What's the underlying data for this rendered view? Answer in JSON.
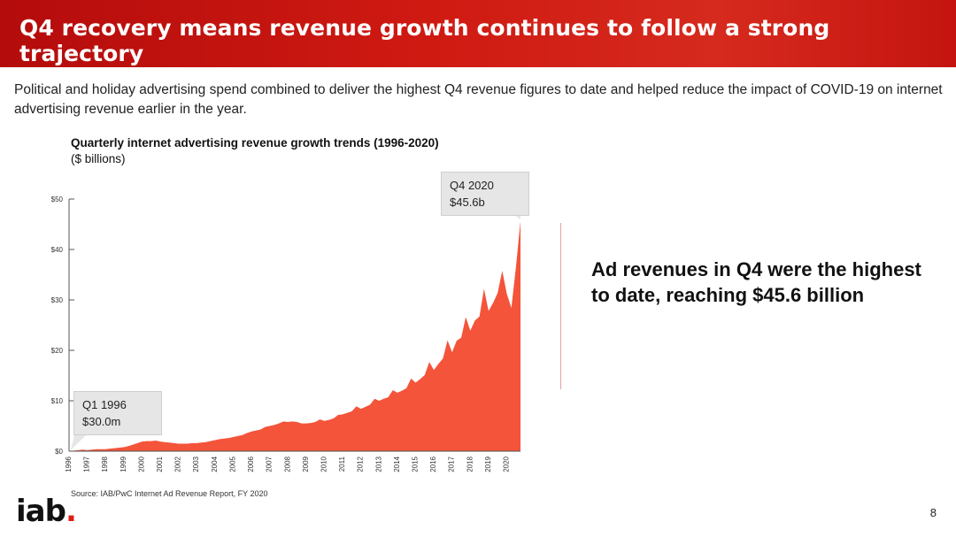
{
  "header": {
    "title": "Q4 recovery means revenue growth continues to follow a strong trajectory"
  },
  "subtitle": "Political and holiday advertising spend combined to deliver the highest Q4 revenue figures to date and helped reduce the impact of COVID-19 on internet advertising revenue earlier in the year.",
  "callouts": {
    "q4": {
      "line1": "Q4 2020",
      "line2": "$45.6b"
    },
    "q1": {
      "line1": "Q1 1996",
      "line2": "$30.0m"
    }
  },
  "takeaway": "Ad revenues in Q4 were the highest to date, reaching $45.6 billion",
  "source": "Source: IAB/PwC Internet Ad Revenue Report, FY 2020",
  "logo": {
    "text": "iab",
    "dot": "."
  },
  "page_number": "8",
  "colors": {
    "area": "#f4543a",
    "header": "#c8150f",
    "axis": "#555555"
  },
  "chart_data": {
    "type": "area",
    "title": "Quarterly internet advertising revenue growth trends (1996-2020)",
    "subtitle": "($ billions)",
    "ylim": [
      0,
      50
    ],
    "yticks": [
      "$0",
      "$10",
      "$20",
      "$30",
      "$40",
      "$50"
    ],
    "ytick_values": [
      0,
      10,
      20,
      30,
      40,
      50
    ],
    "years": [
      "1996",
      "1997",
      "1998",
      "1999",
      "2000",
      "2001",
      "2002",
      "2003",
      "2004",
      "2005",
      "2006",
      "2007",
      "2008",
      "2009",
      "2010",
      "2011",
      "2012",
      "2013",
      "2014",
      "2015",
      "2016",
      "2017",
      "2018",
      "2019",
      "2020"
    ],
    "series": [
      {
        "values": [
          0.03,
          0.1,
          0.2,
          0.3,
          0.2,
          0.3,
          0.4,
          0.4,
          0.4,
          0.5,
          0.6,
          0.7,
          0.8,
          1.0,
          1.3,
          1.6,
          1.9,
          2.0,
          2.0,
          2.1,
          1.9,
          1.8,
          1.7,
          1.6,
          1.5,
          1.5,
          1.5,
          1.6,
          1.6,
          1.7,
          1.8,
          2.0,
          2.2,
          2.4,
          2.5,
          2.6,
          2.8,
          3.0,
          3.2,
          3.6,
          3.9,
          4.1,
          4.3,
          4.8,
          5.0,
          5.2,
          5.5,
          5.9,
          5.8,
          5.9,
          5.8,
          5.5,
          5.5,
          5.6,
          5.8,
          6.3,
          6.0,
          6.2,
          6.5,
          7.2,
          7.3,
          7.6,
          7.9,
          8.9,
          8.4,
          8.8,
          9.2,
          10.4,
          10.0,
          10.4,
          10.7,
          12.1,
          11.6,
          12.0,
          12.5,
          14.4,
          13.6,
          14.3,
          15.1,
          17.7,
          16.1,
          17.3,
          18.4,
          22.0,
          19.6,
          21.9,
          22.5,
          26.6,
          23.9,
          25.9,
          26.7,
          32.2,
          27.8,
          29.4,
          31.4,
          35.8,
          31.2,
          28.4,
          36.5,
          45.6
        ]
      }
    ]
  }
}
